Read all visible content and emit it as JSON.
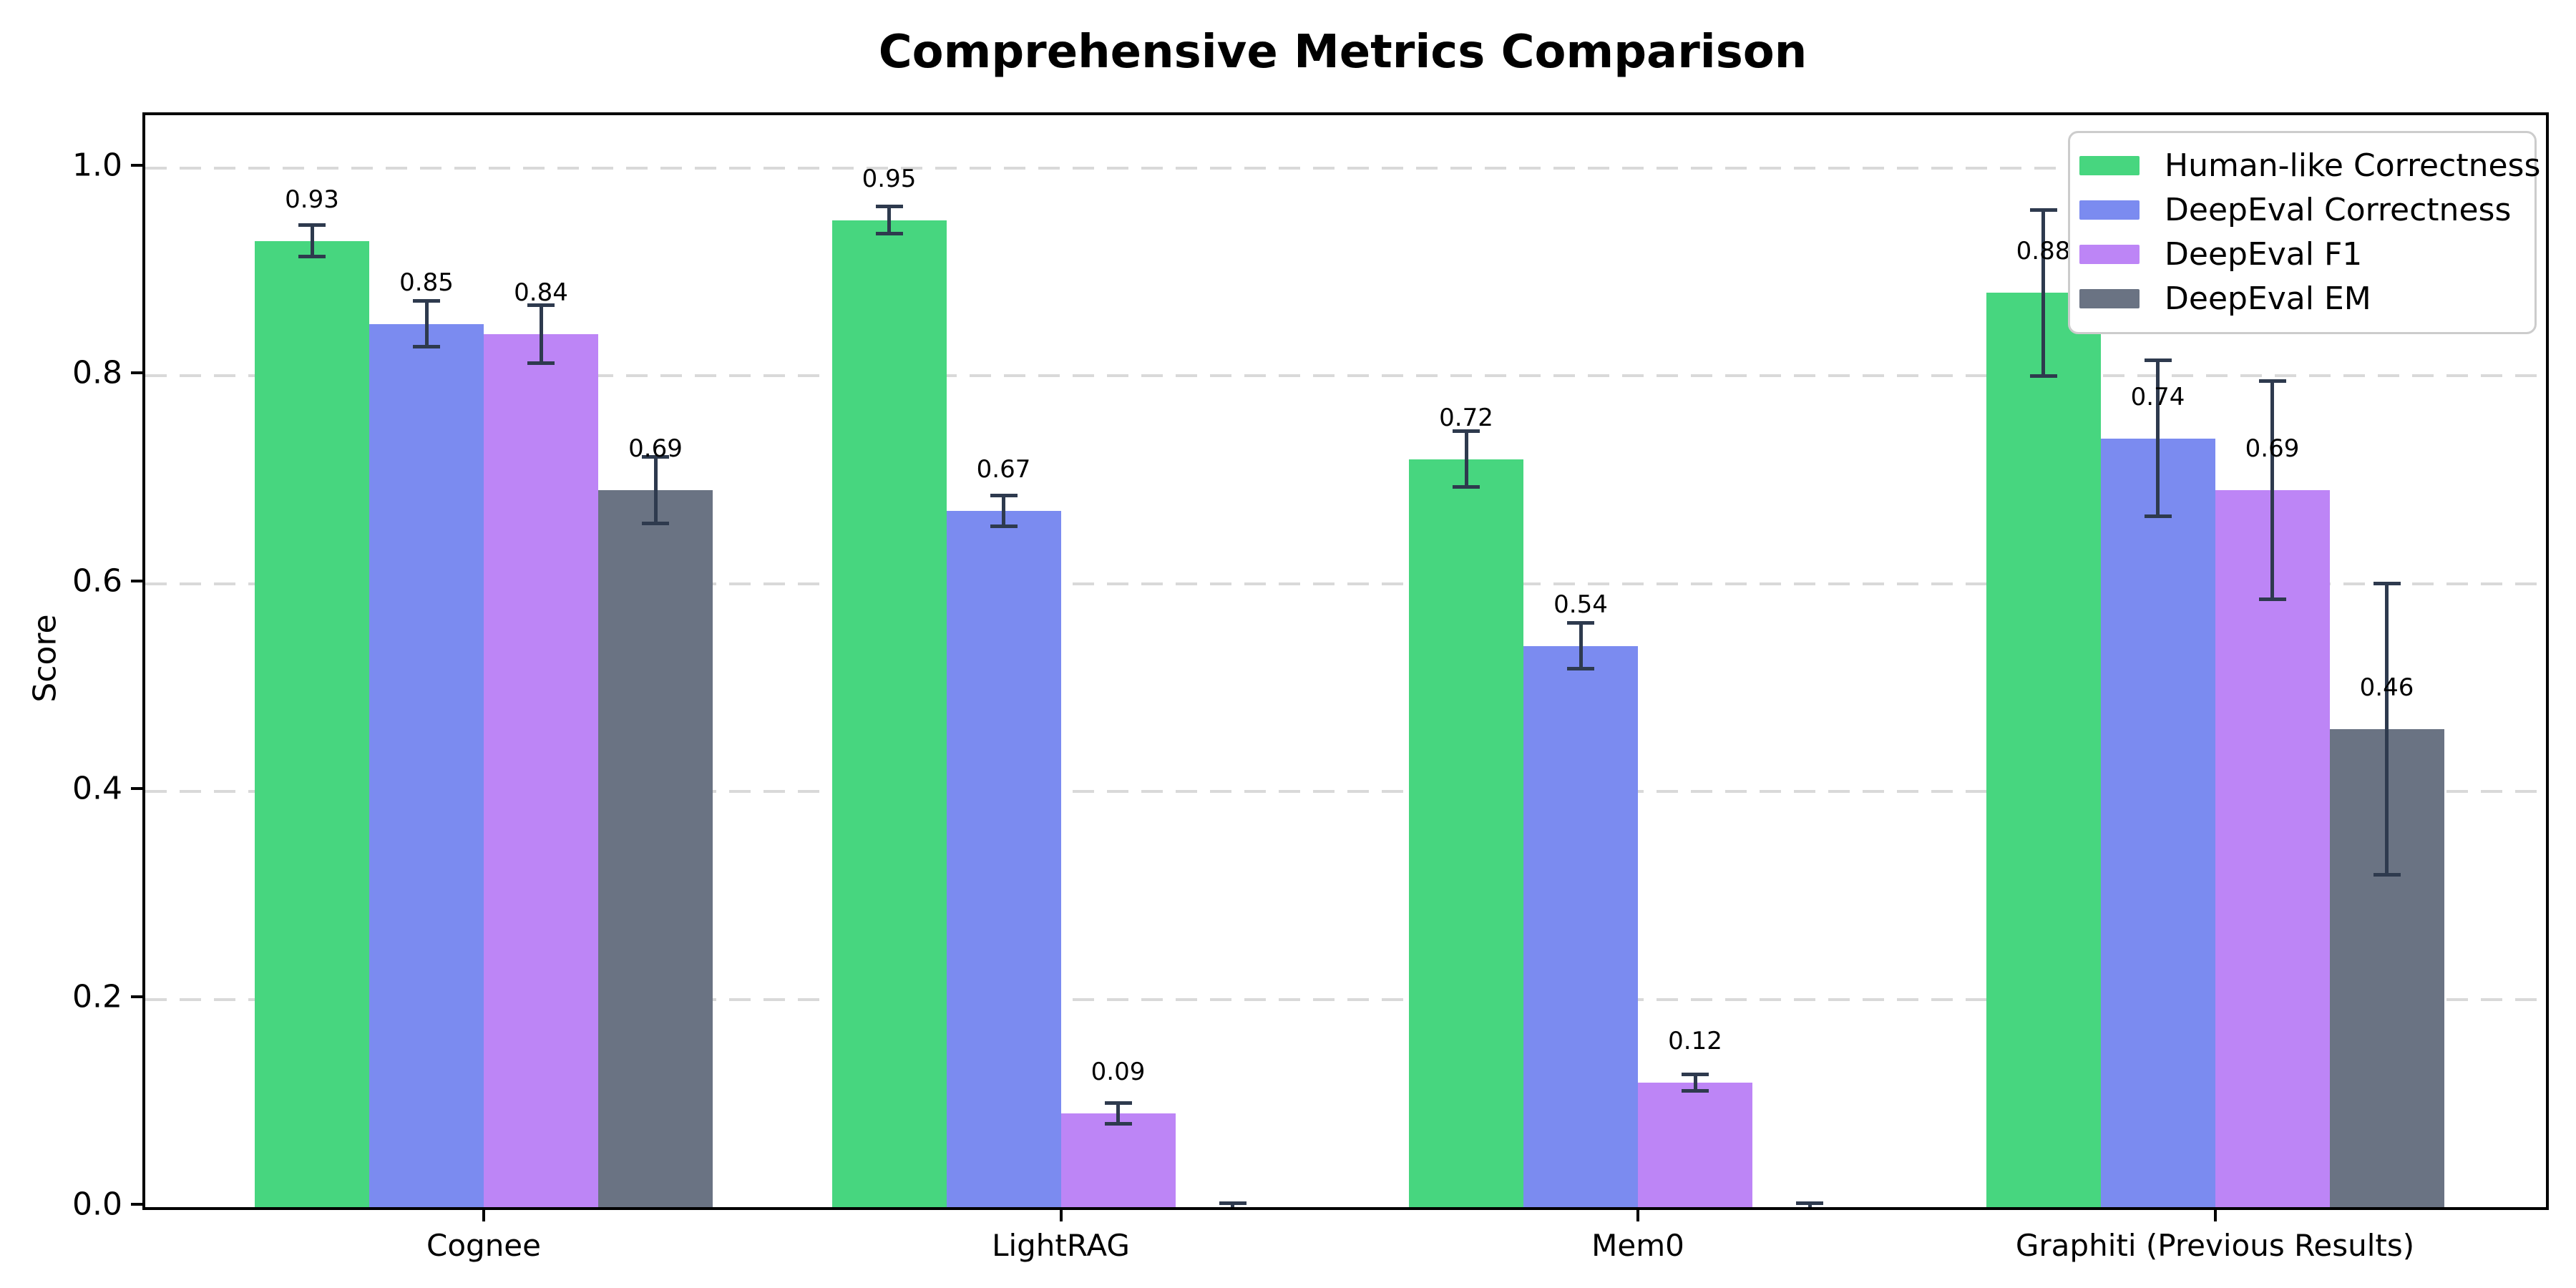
{
  "title": "Comprehensive Metrics Comparison",
  "chart_data": {
    "type": "bar",
    "title": "Comprehensive Metrics Comparison",
    "xlabel": "",
    "ylabel": "Score",
    "ylim": [
      0.0,
      1.05
    ],
    "yticks": [
      "0.0",
      "0.2",
      "0.4",
      "0.6",
      "0.8",
      "1.0"
    ],
    "grid": "horizontal-dashed",
    "legend_position": "upper-right",
    "categories": [
      "Cognee",
      "LightRAG",
      "Mem0",
      "Graphiti (Previous Results)"
    ],
    "series": [
      {
        "name": "Human-like Correctness",
        "color": "#47d67f",
        "values": [
          0.93,
          0.95,
          0.72,
          0.88
        ],
        "errors": [
          0.015,
          0.013,
          0.027,
          0.08
        ],
        "labels": [
          "0.93",
          "0.95",
          "0.72",
          "0.88"
        ]
      },
      {
        "name": "DeepEval Correctness",
        "color": "#7b8bf0",
        "values": [
          0.85,
          0.67,
          0.54,
          0.74
        ],
        "errors": [
          0.022,
          0.015,
          0.022,
          0.075
        ],
        "labels": [
          "0.85",
          "0.67",
          "0.54",
          "0.74"
        ]
      },
      {
        "name": "DeepEval F1",
        "color": "#bd85f6",
        "values": [
          0.84,
          0.09,
          0.12,
          0.69
        ],
        "errors": [
          0.028,
          0.01,
          0.008,
          0.105
        ],
        "labels": [
          "0.84",
          "0.09",
          "0.12",
          "0.69"
        ]
      },
      {
        "name": "DeepEval EM",
        "color": "#6a7383",
        "values": [
          0.69,
          0.0,
          0.0,
          0.46
        ],
        "errors": [
          0.032,
          0.004,
          0.004,
          0.14
        ],
        "labels": [
          "0.69",
          "",
          "",
          "0.46"
        ]
      }
    ],
    "style": {
      "error_bar_color": "#2e3a4e",
      "gridline_color": "#d9d9d9",
      "spine_color": "#000000",
      "background": "#ffffff",
      "legend_border_color": "#cccccc"
    }
  }
}
